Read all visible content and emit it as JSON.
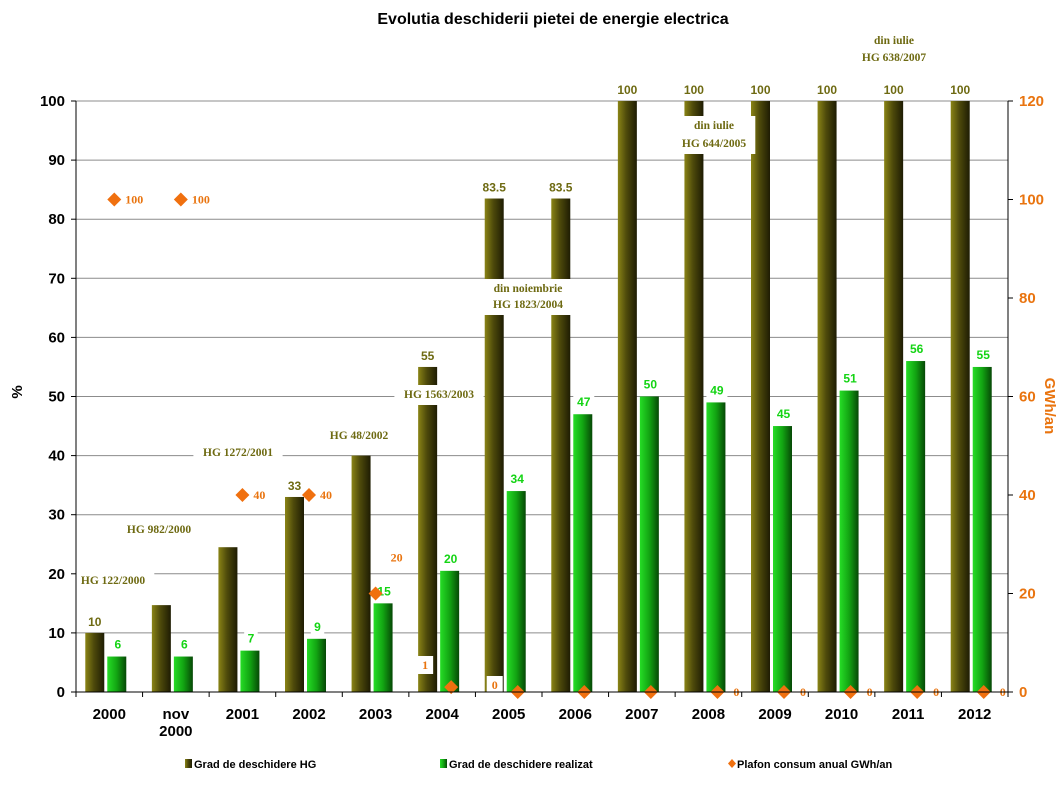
{
  "chart_data": {
    "type": "bar",
    "title": "Evolutia deschiderii pietei de energie electrica",
    "ylabel": "%",
    "ylabel_right": "GWh/an",
    "ylim": [
      0,
      100
    ],
    "ylim_right": [
      0,
      120
    ],
    "yticks": [
      "0",
      "10",
      "20",
      "30",
      "40",
      "50",
      "60",
      "70",
      "80",
      "90",
      "100"
    ],
    "yticks_right": [
      "0",
      "20",
      "40",
      "60",
      "80",
      "100",
      "120"
    ],
    "grid": true,
    "legend_position": "bottom",
    "categories": [
      "2000",
      "nov\n2000",
      "2001",
      "2002",
      "2003",
      "2004",
      "2005",
      "2006",
      "2007",
      "2008",
      "2009",
      "2010",
      "2011",
      "2012"
    ],
    "series": [
      {
        "name": "Grad de deschidere HG",
        "type": "bar",
        "color": "#5c580e",
        "values": [
          10,
          14.7,
          24.5,
          33,
          40,
          55,
          83.5,
          83.5,
          100,
          100,
          100,
          100,
          100,
          100
        ],
        "labels": [
          "10",
          "",
          "",
          "33",
          "",
          "55",
          "83.5",
          "83.5",
          "100",
          "100",
          "100",
          "100",
          "100",
          "100"
        ]
      },
      {
        "name": "Grad de deschidere realizat",
        "type": "bar",
        "color": "#1fc61f",
        "values": [
          6,
          6,
          7,
          9,
          15,
          20.5,
          34,
          47,
          50,
          49,
          45,
          51,
          56,
          55
        ],
        "labels": [
          "6",
          "6",
          "7",
          "9",
          "15",
          "20",
          "34",
          "47",
          "50",
          "49",
          "45",
          "51",
          "56",
          "55"
        ]
      },
      {
        "name": "Plafon consum anual GWh/an",
        "type": "scatter",
        "axis": "right",
        "color": "#f0700f",
        "values": [
          100,
          100,
          40,
          40,
          20,
          1,
          0,
          0,
          0,
          0,
          0,
          0,
          0,
          0
        ],
        "labels": [
          "100",
          "100",
          "40",
          "40",
          "20",
          "1",
          "0",
          "",
          "",
          "0",
          "0",
          "0",
          "0",
          "0"
        ]
      }
    ],
    "annotations": [
      {
        "lines": [
          "HG 122/2000"
        ],
        "category_index": 0
      },
      {
        "lines": [
          "HG 982/2000"
        ],
        "category_index": 1
      },
      {
        "lines": [
          "HG 1272/2001"
        ],
        "category_index": 2
      },
      {
        "lines": [
          "HG 48/2002"
        ],
        "category_index": 3
      },
      {
        "lines": [
          "HG 1563/2003"
        ],
        "category_index": 4
      },
      {
        "lines": [
          "din noiembrie",
          "HG 1823/2004"
        ],
        "category_index": 5
      },
      {
        "lines": [
          "din iulie",
          "HG 644/2005"
        ],
        "category_index": 8
      },
      {
        "lines": [
          "din iulie",
          "HG 638/2007"
        ],
        "category_index": 11
      }
    ]
  }
}
